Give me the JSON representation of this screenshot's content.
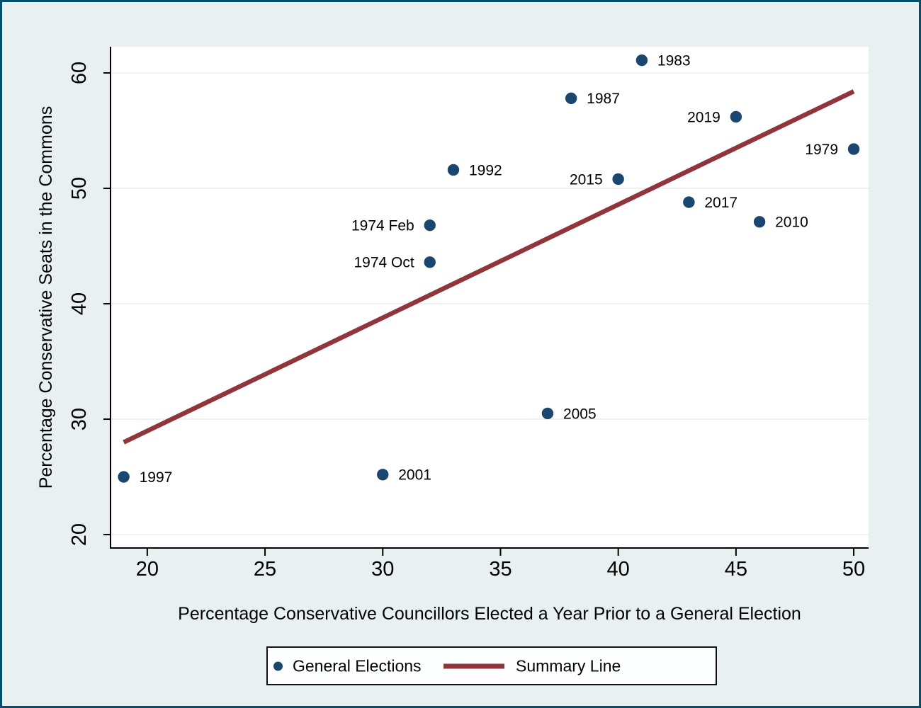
{
  "window": {
    "background": "#e9f0f2",
    "border_color": "#03506a",
    "plot_background": "#ffffff",
    "gridline_color": "#f0f0f0",
    "axis_color": "#000000",
    "text_color": "#000000"
  },
  "chart_data": {
    "type": "scatter",
    "title": "",
    "xlabel": "Percentage Conservative Councillors Elected a Year Prior to a General Election",
    "ylabel": "Percentage Conservative Seats in the Commons",
    "xlim": [
      18.47,
      50.63
    ],
    "ylim": [
      18.9,
      62.27
    ],
    "x_ticks": [
      20,
      25,
      30,
      35,
      40,
      45,
      50
    ],
    "y_ticks": [
      20,
      30,
      40,
      50,
      60
    ],
    "grid": "horizontal-only",
    "legend_position": "bottom-center",
    "series": [
      {
        "name": "General Elections",
        "type": "scatter",
        "color": "#1a476f",
        "marker_radius": 8.2,
        "points": [
          {
            "label": "1997",
            "x": 19,
            "y": 25.0,
            "label_side": "right"
          },
          {
            "label": "2001",
            "x": 30,
            "y": 25.2,
            "label_side": "right"
          },
          {
            "label": "2005",
            "x": 37,
            "y": 30.5,
            "label_side": "right"
          },
          {
            "label": "1974 Oct",
            "x": 32,
            "y": 43.6,
            "label_side": "left"
          },
          {
            "label": "1974 Feb",
            "x": 32,
            "y": 46.8,
            "label_side": "left"
          },
          {
            "label": "2010",
            "x": 46,
            "y": 47.1,
            "label_side": "right"
          },
          {
            "label": "2017",
            "x": 43,
            "y": 48.8,
            "label_side": "right"
          },
          {
            "label": "2015",
            "x": 40,
            "y": 50.8,
            "label_side": "left"
          },
          {
            "label": "1992",
            "x": 33,
            "y": 51.6,
            "label_side": "right"
          },
          {
            "label": "1979",
            "x": 50,
            "y": 53.4,
            "label_side": "left"
          },
          {
            "label": "2019",
            "x": 45,
            "y": 56.2,
            "label_side": "left"
          },
          {
            "label": "1987",
            "x": 38,
            "y": 57.8,
            "label_side": "right"
          },
          {
            "label": "1983",
            "x": 41,
            "y": 61.1,
            "label_side": "right"
          }
        ]
      },
      {
        "name": "Summary Line",
        "type": "line",
        "color": "#90353b",
        "line_width": 6.5,
        "points": [
          {
            "x": 19,
            "y": 28.0
          },
          {
            "x": 50,
            "y": 58.4
          }
        ]
      }
    ]
  },
  "legend": {
    "items": [
      {
        "label": "General Elections",
        "marker": "dot",
        "color": "#1a476f"
      },
      {
        "label": "Summary Line",
        "marker": "line",
        "color": "#90353b"
      }
    ]
  }
}
